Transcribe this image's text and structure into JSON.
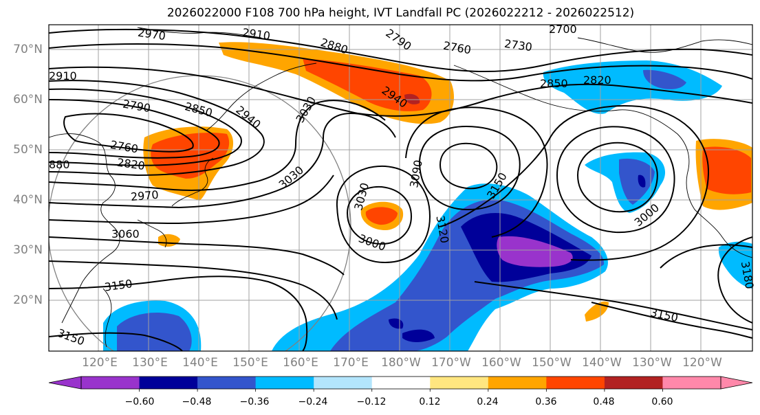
{
  "title": "2026022000 F108 700 hPa height, IVT Landfall PC (2026022212 - 2026022512)",
  "lat_labels": [
    "70°N",
    "60°N",
    "50°N",
    "40°N",
    "30°N",
    "20°N"
  ],
  "lon_labels": [
    "120°E",
    "130°E",
    "140°E",
    "150°E",
    "160°E",
    "170°E",
    "180°W",
    "170°W",
    "160°W",
    "150°W",
    "140°W",
    "130°W",
    "120°W"
  ],
  "contour_labels": [
    "2970",
    "2910",
    "2880",
    "2790",
    "2760",
    "2730",
    "2700",
    "2910",
    "2850",
    "2820",
    "2940",
    "3030",
    "2790",
    "2850",
    "2940",
    "2760",
    "2820",
    "880",
    "2970",
    "3030",
    "3090",
    "3150",
    "3030",
    "3000",
    "3120",
    "3060",
    "3000",
    "3150",
    "3150",
    "3150",
    "3180"
  ],
  "colorbar": {
    "ticks": [
      "−0.60",
      "−0.48",
      "−0.36",
      "−0.24",
      "−0.12",
      "0.12",
      "0.24",
      "0.36",
      "0.48",
      "0.60"
    ],
    "colors": [
      "#9933cc",
      "#000099",
      "#3355cc",
      "#00bbff",
      "#b3e5fc",
      "#ffffff",
      "#ffe680",
      "#ffa500",
      "#ff4500",
      "#b22222",
      "#ff88aa"
    ]
  }
}
